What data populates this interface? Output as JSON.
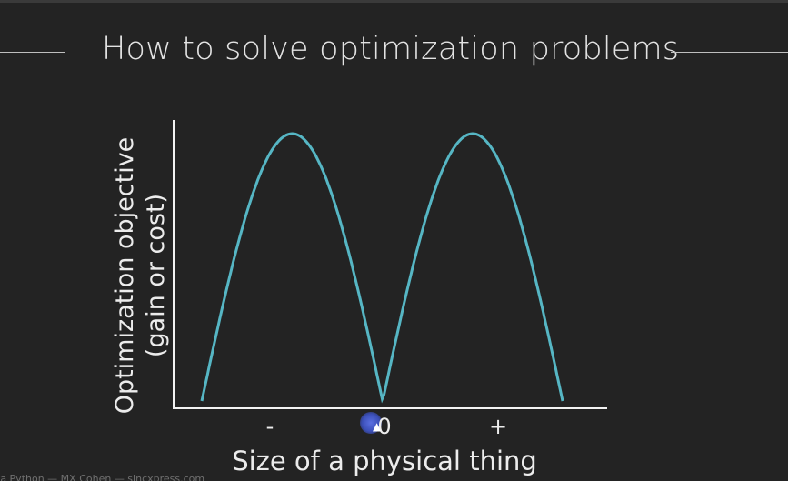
{
  "slide": {
    "title": "How to solve optimization problems"
  },
  "diagram": {
    "y_label_line1": "Optimization objective",
    "y_label_line2": "(gain or cost)",
    "x_label": "Size of a physical thing",
    "ticks": {
      "minus": "-",
      "zero": "0",
      "plus": "+"
    },
    "curve_color": "#56b6c4",
    "axis_color": "#f2f2f2"
  },
  "watermark": {
    "text": "ta Python — MX Cohen — sincxpress.com"
  },
  "cursor": {
    "icon": "pointer-arrow-icon"
  }
}
